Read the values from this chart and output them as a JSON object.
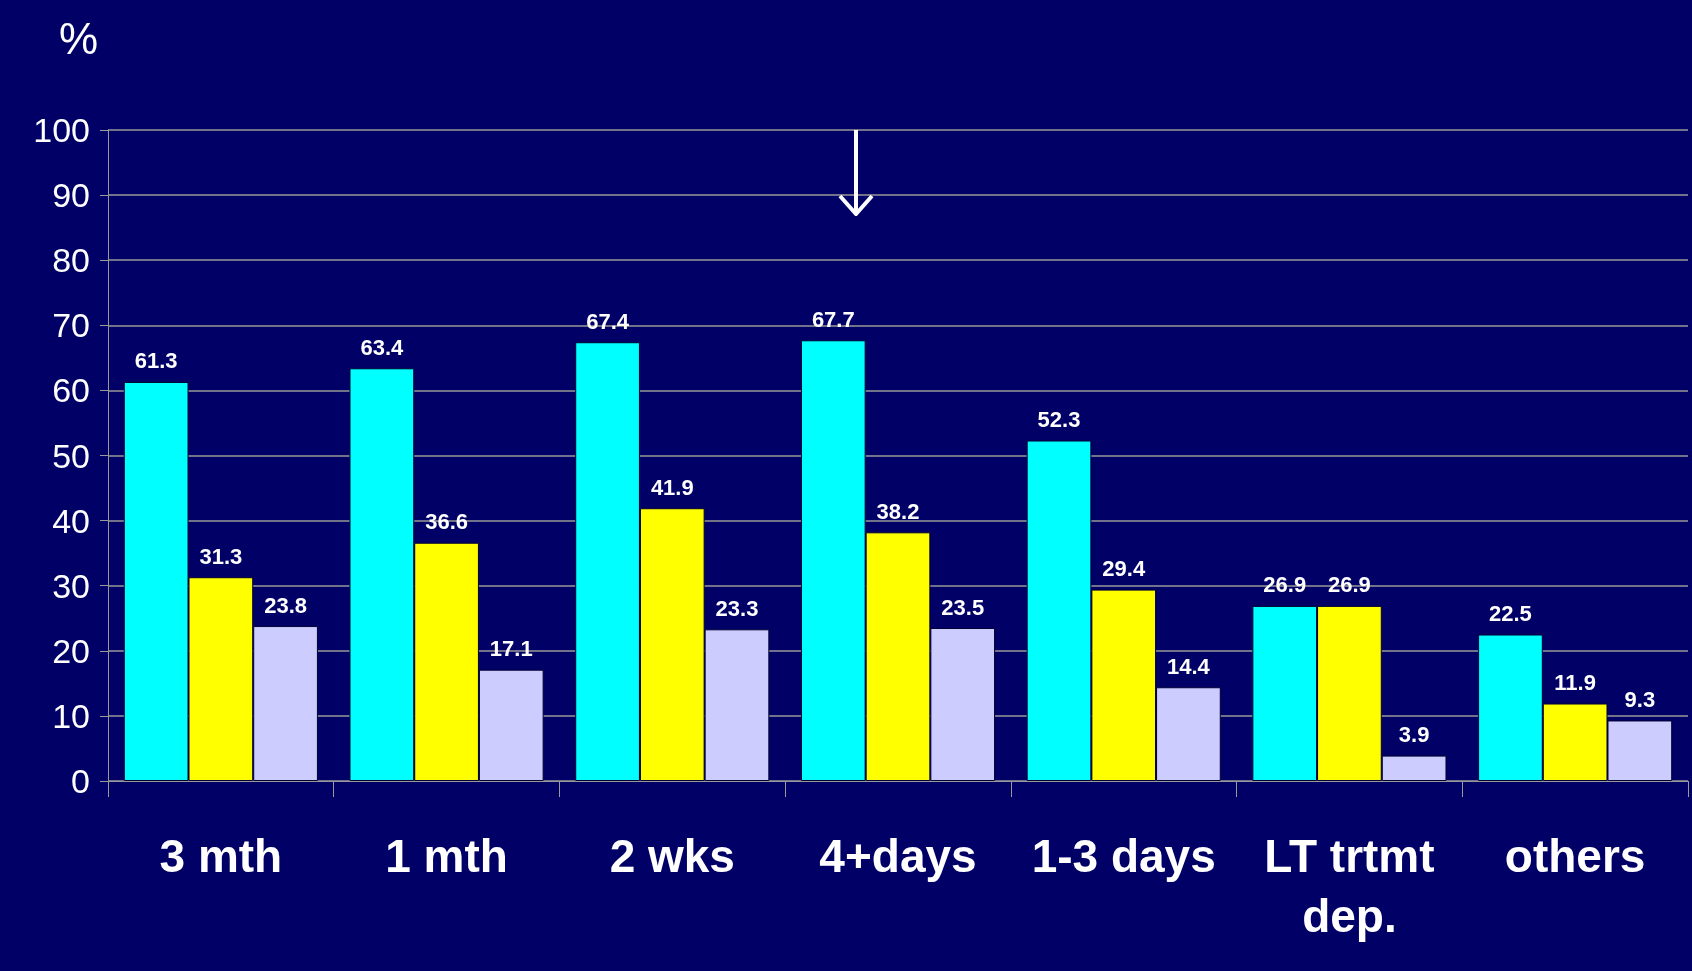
{
  "chart_data": {
    "type": "bar",
    "ylabel": "%",
    "categories": [
      "3 mth",
      "1 mth",
      "2 wks",
      "4+days",
      "1-3 days",
      "LT trtmt\ndep.",
      "others"
    ],
    "series": [
      {
        "color": "#00ffff",
        "values": [
          61.3,
          63.4,
          67.4,
          67.7,
          52.3,
          26.9,
          22.5
        ]
      },
      {
        "color": "#ffff00",
        "values": [
          31.3,
          36.6,
          41.9,
          38.2,
          29.4,
          26.9,
          11.9
        ]
      },
      {
        "color": "#ccccff",
        "values": [
          23.8,
          17.1,
          23.3,
          23.5,
          14.4,
          3.9,
          9.3
        ]
      }
    ],
    "ylim": [
      0,
      100
    ],
    "yticks": [
      0,
      10,
      20,
      30,
      40,
      50,
      60,
      70,
      80,
      90,
      100
    ],
    "grid": "y",
    "data_labels": true
  }
}
